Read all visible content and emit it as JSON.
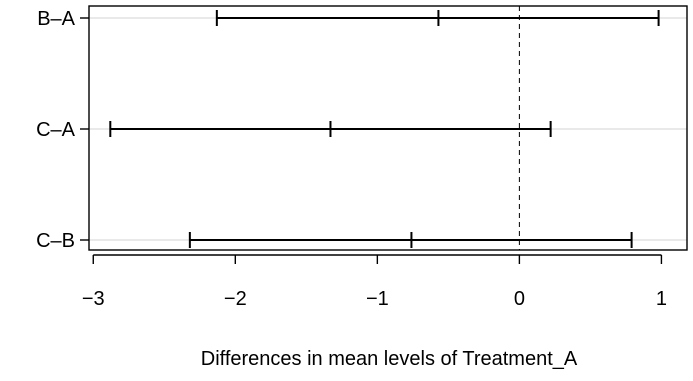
{
  "chart_data": {
    "type": "interval",
    "title": "",
    "xlabel": "Differences in mean levels of Treatment_A",
    "ylabel": "",
    "xlim": [
      -3.03,
      1.18
    ],
    "xticks": [
      -3,
      -2,
      -1,
      0,
      1
    ],
    "xtick_labels": [
      "−3",
      "−2",
      "−1",
      "0",
      "1"
    ],
    "reference_line": 0,
    "grid": "horizontal",
    "comparisons": [
      {
        "label": "B–A",
        "diff": -0.57,
        "lwr": -2.13,
        "upr": 0.98
      },
      {
        "label": "C–A",
        "diff": -1.33,
        "lwr": -2.88,
        "upr": 0.22
      },
      {
        "label": "C–B",
        "diff": -0.76,
        "lwr": -2.32,
        "upr": 0.79
      }
    ]
  },
  "colors": {
    "line": "#000000",
    "grid": "#d3d3d3",
    "background": "#ffffff"
  }
}
